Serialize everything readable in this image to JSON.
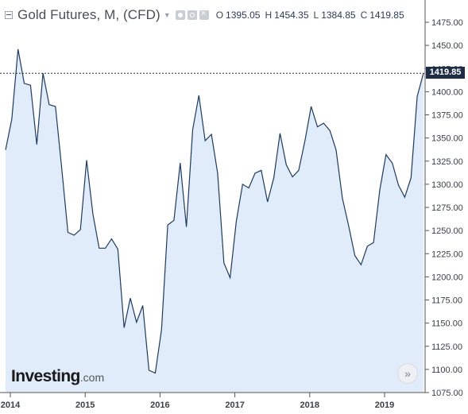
{
  "header": {
    "title": "Gold Futures, M, (CFD)",
    "ohlc": [
      {
        "key": "O",
        "value": "1395.05"
      },
      {
        "key": "H",
        "value": "1454.35"
      },
      {
        "key": "L",
        "value": "1384.85"
      },
      {
        "key": "C",
        "value": "1419.85"
      }
    ]
  },
  "price_tag": "1419.85",
  "logo": {
    "brand": "Investing",
    "suffix": ".com"
  },
  "icons": {
    "scroll": "chevrons-right-icon"
  },
  "colors": {
    "line": "#1f3a5f",
    "area": "#d6e6f7",
    "tag_bg": "#1f2d44",
    "axis": "#555555"
  },
  "chart_data": {
    "type": "area",
    "title": "Gold Futures, M, (CFD)",
    "xlabel": "",
    "ylabel": "",
    "ylim": [
      1075,
      1500
    ],
    "x_ticks": [
      "2014",
      "2015",
      "2016",
      "2017",
      "2018",
      "2019"
    ],
    "y_ticks": [
      "1475.00",
      "1450.00",
      "1425.00",
      "1400.00",
      "1375.00",
      "1350.00",
      "1325.00",
      "1300.00",
      "1275.00",
      "1250.00",
      "1225.00",
      "1200.00",
      "1175.00",
      "1150.00",
      "1125.00",
      "1100.00",
      "1075.00"
    ],
    "last_price": 1419.85,
    "grid": false,
    "series": [
      {
        "values": [
          1337,
          1370,
          1446,
          1409,
          1407,
          1343,
          1420,
          1386,
          1384,
          1318,
          1248,
          1245,
          1251,
          1326,
          1268,
          1231,
          1231,
          1241,
          1230,
          1145,
          1177,
          1151,
          1169,
          1099,
          1096,
          1143,
          1256,
          1261,
          1323,
          1254,
          1359,
          1396,
          1347,
          1354,
          1312,
          1215,
          1199,
          1260,
          1300,
          1296,
          1312,
          1315,
          1281,
          1307,
          1355,
          1321,
          1308,
          1315,
          1347,
          1384,
          1362,
          1366,
          1358,
          1337,
          1285,
          1255,
          1223,
          1213,
          1233,
          1237,
          1294,
          1332,
          1323,
          1299,
          1286,
          1307,
          1395,
          1419.85
        ]
      }
    ]
  }
}
